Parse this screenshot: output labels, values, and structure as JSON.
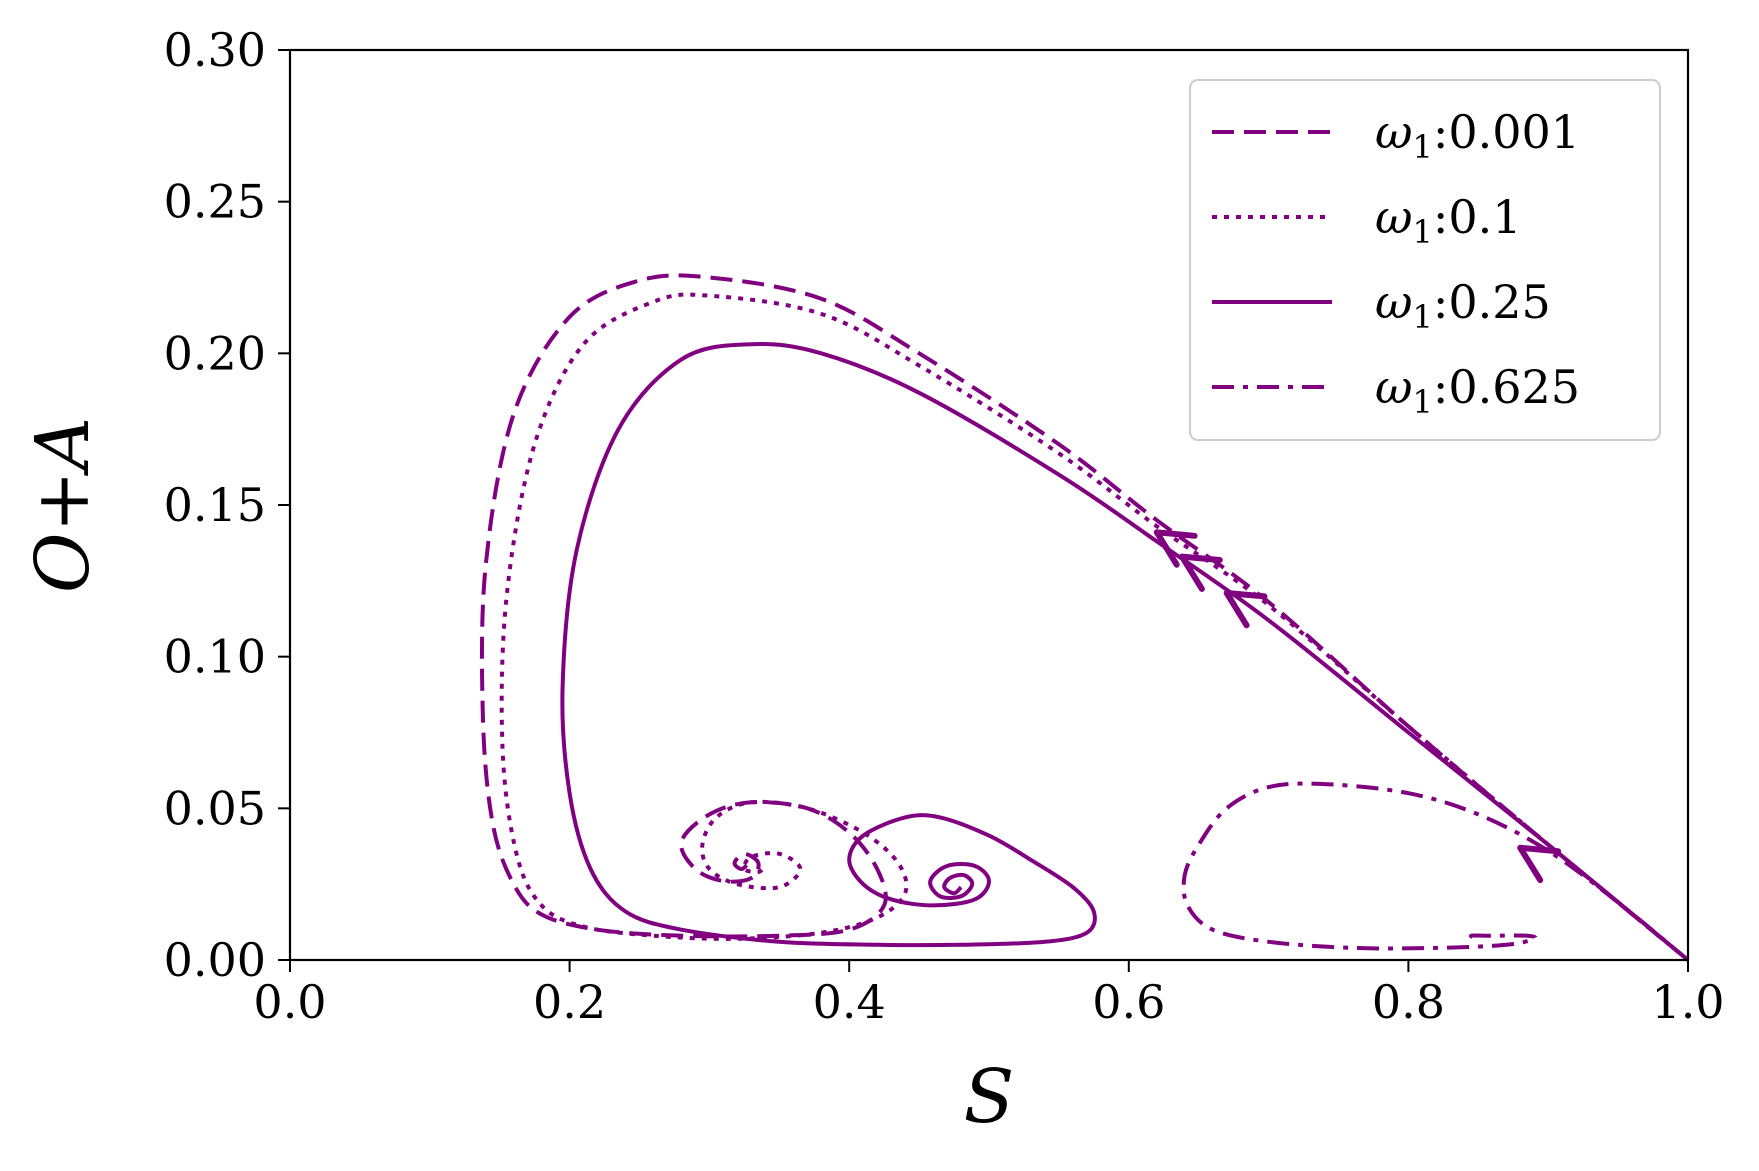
{
  "chart_data": {
    "type": "line",
    "xlabel": "S",
    "ylabel": "O+A",
    "xlim": [
      0.0,
      1.0
    ],
    "ylim": [
      0.0,
      0.3
    ],
    "xticks": [
      "0.0",
      "0.2",
      "0.4",
      "0.6",
      "0.8",
      "1.0"
    ],
    "yticks": [
      "0.00",
      "0.05",
      "0.10",
      "0.15",
      "0.20",
      "0.25",
      "0.30"
    ],
    "grid": false,
    "legend_position": "top-right",
    "line_color": "#800080",
    "series": [
      {
        "name": "ω1:0.001",
        "legend_symbol": "ω",
        "legend_sub": "1",
        "legend_value": ":0.001",
        "style": "dashed",
        "points": [
          [
            1.0,
            0.0
          ],
          [
            0.9,
            0.038
          ],
          [
            0.8,
            0.077
          ],
          [
            0.7,
            0.118
          ],
          [
            0.62,
            0.145
          ],
          [
            0.55,
            0.17
          ],
          [
            0.45,
            0.2
          ],
          [
            0.38,
            0.218
          ],
          [
            0.3,
            0.225
          ],
          [
            0.25,
            0.224
          ],
          [
            0.2,
            0.212
          ],
          [
            0.16,
            0.18
          ],
          [
            0.14,
            0.13
          ],
          [
            0.138,
            0.08
          ],
          [
            0.145,
            0.045
          ],
          [
            0.16,
            0.025
          ],
          [
            0.18,
            0.015
          ],
          [
            0.22,
            0.01
          ],
          [
            0.28,
            0.008
          ],
          [
            0.35,
            0.008
          ],
          [
            0.4,
            0.01
          ],
          [
            0.425,
            0.018
          ],
          [
            0.42,
            0.03
          ],
          [
            0.4,
            0.042
          ],
          [
            0.37,
            0.05
          ],
          [
            0.33,
            0.052
          ],
          [
            0.3,
            0.048
          ],
          [
            0.28,
            0.039
          ],
          [
            0.29,
            0.03
          ],
          [
            0.31,
            0.026
          ],
          [
            0.33,
            0.027
          ],
          [
            0.335,
            0.032
          ],
          [
            0.325,
            0.035
          ],
          [
            0.318,
            0.032
          ],
          [
            0.323,
            0.03
          ],
          [
            0.328,
            0.032
          ]
        ]
      },
      {
        "name": "ω1:0.1",
        "legend_symbol": "ω",
        "legend_sub": "1",
        "legend_value": ":0.1",
        "style": "dotted",
        "points": [
          [
            1.0,
            0.0
          ],
          [
            0.9,
            0.038
          ],
          [
            0.8,
            0.077
          ],
          [
            0.7,
            0.117
          ],
          [
            0.62,
            0.143
          ],
          [
            0.55,
            0.167
          ],
          [
            0.45,
            0.196
          ],
          [
            0.38,
            0.213
          ],
          [
            0.3,
            0.219
          ],
          [
            0.26,
            0.217
          ],
          [
            0.21,
            0.203
          ],
          [
            0.175,
            0.17
          ],
          [
            0.155,
            0.12
          ],
          [
            0.152,
            0.07
          ],
          [
            0.162,
            0.035
          ],
          [
            0.18,
            0.018
          ],
          [
            0.21,
            0.011
          ],
          [
            0.26,
            0.008
          ],
          [
            0.32,
            0.007
          ],
          [
            0.38,
            0.009
          ],
          [
            0.42,
            0.014
          ],
          [
            0.44,
            0.022
          ],
          [
            0.435,
            0.032
          ],
          [
            0.41,
            0.042
          ],
          [
            0.37,
            0.05
          ],
          [
            0.33,
            0.052
          ],
          [
            0.305,
            0.047
          ],
          [
            0.295,
            0.038
          ],
          [
            0.3,
            0.03
          ],
          [
            0.32,
            0.025
          ],
          [
            0.35,
            0.024
          ],
          [
            0.365,
            0.03
          ],
          [
            0.35,
            0.035
          ],
          [
            0.33,
            0.034
          ],
          [
            0.325,
            0.03
          ],
          [
            0.335,
            0.029
          ],
          [
            0.34,
            0.031
          ]
        ]
      },
      {
        "name": "ω1:0.25",
        "legend_symbol": "ω",
        "legend_sub": "1",
        "legend_value": ":0.25",
        "style": "solid",
        "points": [
          [
            1.0,
            0.0
          ],
          [
            0.9,
            0.038
          ],
          [
            0.8,
            0.075
          ],
          [
            0.7,
            0.112
          ],
          [
            0.62,
            0.138
          ],
          [
            0.55,
            0.16
          ],
          [
            0.45,
            0.187
          ],
          [
            0.38,
            0.2
          ],
          [
            0.33,
            0.203
          ],
          [
            0.28,
            0.198
          ],
          [
            0.235,
            0.175
          ],
          [
            0.205,
            0.135
          ],
          [
            0.195,
            0.09
          ],
          [
            0.2,
            0.055
          ],
          [
            0.215,
            0.03
          ],
          [
            0.24,
            0.016
          ],
          [
            0.28,
            0.01
          ],
          [
            0.35,
            0.006
          ],
          [
            0.42,
            0.005
          ],
          [
            0.48,
            0.005
          ],
          [
            0.54,
            0.006
          ],
          [
            0.57,
            0.009
          ],
          [
            0.575,
            0.016
          ],
          [
            0.56,
            0.024
          ],
          [
            0.53,
            0.033
          ],
          [
            0.5,
            0.041
          ],
          [
            0.465,
            0.047
          ],
          [
            0.44,
            0.047
          ],
          [
            0.41,
            0.041
          ],
          [
            0.4,
            0.033
          ],
          [
            0.41,
            0.025
          ],
          [
            0.43,
            0.02
          ],
          [
            0.46,
            0.018
          ],
          [
            0.49,
            0.02
          ],
          [
            0.5,
            0.026
          ],
          [
            0.49,
            0.031
          ],
          [
            0.47,
            0.031
          ],
          [
            0.458,
            0.026
          ],
          [
            0.465,
            0.021
          ],
          [
            0.48,
            0.021
          ],
          [
            0.488,
            0.025
          ],
          [
            0.482,
            0.028
          ],
          [
            0.472,
            0.027
          ],
          [
            0.468,
            0.024
          ],
          [
            0.475,
            0.022
          ],
          [
            0.48,
            0.024
          ]
        ]
      },
      {
        "name": "ω1:0.625",
        "legend_symbol": "ω",
        "legend_sub": "1",
        "legend_value": ":0.625",
        "style": "dashdot",
        "points": [
          [
            1.0,
            0.0
          ],
          [
            0.95,
            0.019
          ],
          [
            0.9,
            0.036
          ],
          [
            0.85,
            0.048
          ],
          [
            0.8,
            0.055
          ],
          [
            0.74,
            0.058
          ],
          [
            0.7,
            0.057
          ],
          [
            0.67,
            0.05
          ],
          [
            0.65,
            0.038
          ],
          [
            0.64,
            0.028
          ],
          [
            0.642,
            0.018
          ],
          [
            0.66,
            0.01
          ],
          [
            0.7,
            0.006
          ],
          [
            0.76,
            0.004
          ],
          [
            0.82,
            0.004
          ],
          [
            0.87,
            0.005
          ],
          [
            0.89,
            0.007
          ],
          [
            0.885,
            0.008
          ],
          [
            0.86,
            0.008
          ],
          [
            0.845,
            0.008
          ],
          [
            0.85,
            0.007
          ]
        ]
      }
    ],
    "arrows": [
      {
        "at": [
          0.62,
          0.141
        ],
        "series": 0
      },
      {
        "at": [
          0.638,
          0.133
        ],
        "series": 1
      },
      {
        "at": [
          0.67,
          0.121
        ],
        "series": 2
      },
      {
        "at": [
          0.88,
          0.037
        ],
        "series": 3
      }
    ]
  }
}
